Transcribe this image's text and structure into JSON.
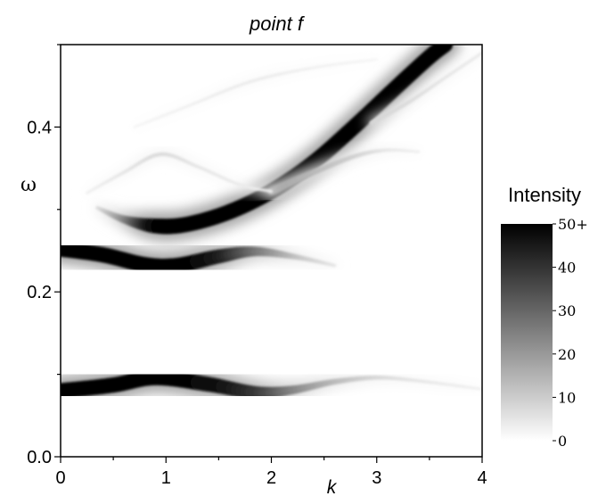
{
  "chart_data": {
    "type": "heatmap",
    "title": "point f",
    "xlabel": "k",
    "ylabel": "ω",
    "xlim": [
      0,
      4
    ],
    "ylim": [
      0,
      0.5
    ],
    "x_ticks": [
      "0",
      "1",
      "2",
      "3",
      "4"
    ],
    "y_ticks": [
      "0.0",
      "0.2",
      "0.4"
    ],
    "grid": false,
    "colorbar": {
      "title": "Intensity",
      "ticks": [
        "0",
        "10",
        "20",
        "30",
        "40",
        "50+"
      ],
      "range": [
        0,
        50
      ],
      "low_color": "#ffffff",
      "high_color": "#000000"
    },
    "bands": [
      {
        "points": [
          [
            0,
            0.08
          ],
          [
            0.5,
            0.087
          ],
          [
            0.9,
            0.096
          ],
          [
            1.4,
            0.088
          ],
          [
            1.85,
            0.078
          ],
          [
            2.2,
            0.081
          ],
          [
            2.6,
            0.091
          ],
          [
            3.0,
            0.096
          ],
          [
            3.4,
            0.092
          ],
          [
            4.0,
            0.082
          ]
        ],
        "intensity": [
          50,
          50,
          50,
          48,
          40,
          25,
          14,
          8,
          5,
          3
        ]
      },
      {
        "points": [
          [
            0,
            0.252
          ],
          [
            0.4,
            0.245
          ],
          [
            0.8,
            0.233
          ],
          [
            1.1,
            0.232
          ],
          [
            1.5,
            0.243
          ],
          [
            1.85,
            0.249
          ],
          [
            2.25,
            0.242
          ],
          [
            2.6,
            0.232
          ]
        ],
        "intensity": [
          50,
          50,
          50,
          50,
          45,
          28,
          12,
          5
        ]
      },
      {
        "points": [
          [
            0.35,
            0.302
          ],
          [
            0.6,
            0.288
          ],
          [
            0.9,
            0.28
          ],
          [
            1.2,
            0.282
          ],
          [
            1.6,
            0.297
          ],
          [
            2.0,
            0.322
          ],
          [
            2.4,
            0.357
          ],
          [
            2.8,
            0.402
          ],
          [
            3.2,
            0.45
          ],
          [
            3.5,
            0.485
          ],
          [
            3.65,
            0.5
          ]
        ],
        "intensity": [
          6,
          22,
          48,
          50,
          50,
          50,
          50,
          50,
          50,
          50,
          50
        ]
      },
      {
        "points": [
          [
            2.0,
            0.322
          ],
          [
            2.4,
            0.345
          ],
          [
            2.8,
            0.365
          ],
          [
            3.1,
            0.372
          ],
          [
            3.4,
            0.37
          ]
        ],
        "intensity": [
          18,
          14,
          9,
          5,
          3
        ]
      },
      {
        "points": [
          [
            2.95,
            0.405
          ],
          [
            3.3,
            0.43
          ],
          [
            3.65,
            0.46
          ],
          [
            4.0,
            0.49
          ]
        ],
        "intensity": [
          8,
          7,
          5,
          4
        ]
      },
      {
        "points": [
          [
            0.25,
            0.32
          ],
          [
            0.6,
            0.345
          ],
          [
            0.95,
            0.367
          ],
          [
            1.3,
            0.352
          ],
          [
            1.7,
            0.33
          ],
          [
            2.0,
            0.322
          ]
        ],
        "intensity": [
          3,
          5,
          7,
          5,
          4,
          3
        ]
      },
      {
        "points": [
          [
            0.7,
            0.4
          ],
          [
            1.2,
            0.425
          ],
          [
            1.8,
            0.455
          ],
          [
            2.4,
            0.472
          ],
          [
            3.0,
            0.482
          ]
        ],
        "intensity": [
          2,
          3,
          4,
          3,
          2
        ]
      }
    ]
  }
}
